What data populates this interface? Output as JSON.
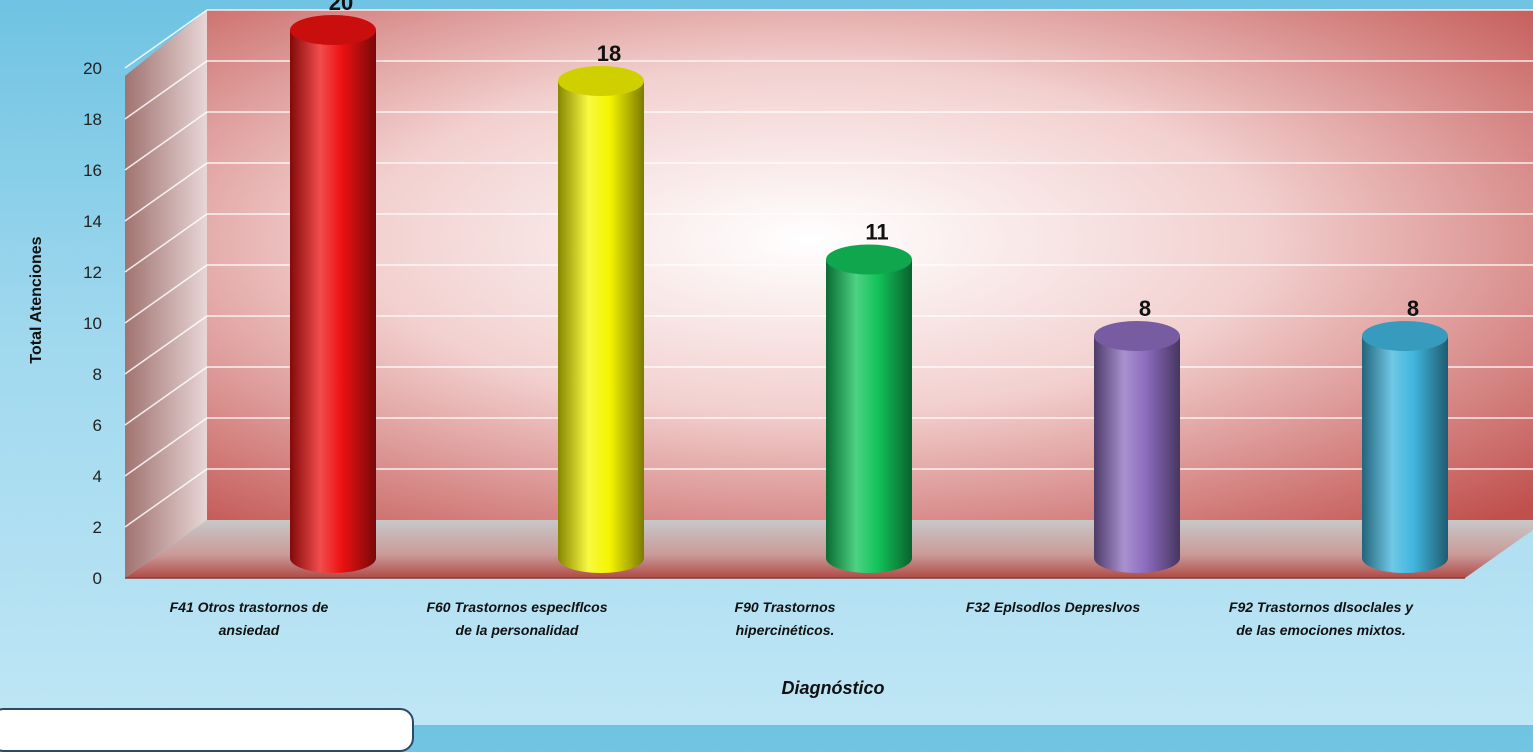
{
  "chart_data": {
    "type": "bar",
    "categories": [
      [
        "F41 Otros trastornos de",
        "ansiedad"
      ],
      [
        "F60 Trastornos especlflcos",
        "de la personalidad"
      ],
      [
        "F90 Trastornos",
        "hipercinéticos."
      ],
      [
        "F32 Eplsodlos Depreslvos"
      ],
      [
        "F92 Trastornos dlsoclales y",
        "de las emociones mixtos."
      ]
    ],
    "values": [
      20,
      18,
      11,
      8,
      8
    ],
    "xlabel": "Diagnóstico",
    "ylabel": "Total Atenciones",
    "ylim": [
      0,
      20
    ],
    "yticks": [
      0,
      2,
      4,
      6,
      8,
      10,
      12,
      14,
      16,
      18,
      20
    ],
    "grid": true,
    "bar_colors": [
      "#ee1111",
      "#f5f500",
      "#12c35a",
      "#8c6cbf",
      "#3fb6de"
    ],
    "background": {
      "wall": "#c0504d",
      "floor": "#b5b5b5"
    }
  }
}
